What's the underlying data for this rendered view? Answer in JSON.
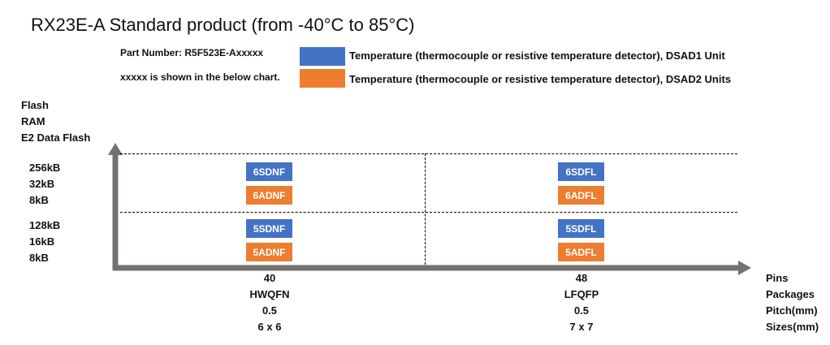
{
  "title": "RX23E-A Standard product (from -40°C to 85°C)",
  "part_number": "Part Number: R5F523E-Axxxxx",
  "note": "xxxxx is shown in the below chart.",
  "colors": {
    "dsad1": "#4472C4",
    "dsad2": "#ED7D31",
    "axis": "#767171"
  },
  "legend": [
    {
      "label": "Temperature (thermocouple or resistive temperature  detector), DSAD1 Unit",
      "color": "#4472C4"
    },
    {
      "label": "Temperature (thermocouple or resistive temperature  detector), DSAD2 Units",
      "color": "#ED7D31"
    }
  ],
  "y_axis": {
    "labels": [
      "Flash",
      "RAM",
      "E2 Data Flash"
    ],
    "rows": [
      [
        "256kB",
        "32kB",
        "8kB"
      ],
      [
        "128kB",
        "16kB",
        "8kB"
      ]
    ]
  },
  "x_axis": {
    "labels": [
      "Pins",
      "Packages",
      "Pitch(mm)",
      "Sizes(mm)"
    ],
    "columns": [
      [
        "40",
        "HWQFN",
        "0.5",
        "6 x 6"
      ],
      [
        "48",
        "LFQFP",
        "0.5",
        "7 x 7"
      ]
    ]
  },
  "cells": [
    [
      [
        "6SDNF",
        "6ADNF"
      ],
      [
        "6SDFL",
        "6ADFL"
      ]
    ],
    [
      [
        "5SDNF",
        "5ADNF"
      ],
      [
        "5SDFL",
        "5ADFL"
      ]
    ]
  ]
}
